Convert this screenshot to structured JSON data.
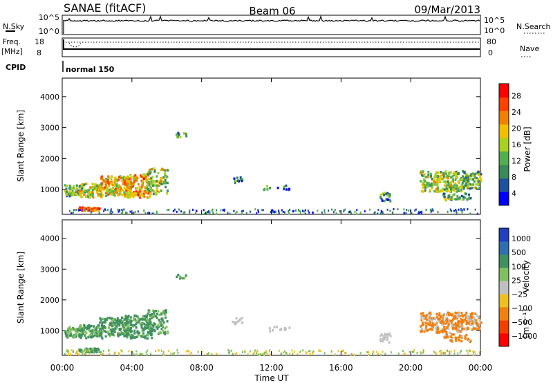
{
  "header": {
    "title_left": "SANAE (fitACF)",
    "title_center": "Beam 06",
    "title_right": "09/Mar/2013"
  },
  "colors": {
    "line": "#000000",
    "background": "#ffffff",
    "power_scale": [
      "#0000ff",
      "#2050a0",
      "#3a8a5a",
      "#50b050",
      "#a8d020",
      "#f0c000",
      "#f08000",
      "#ff4000",
      "#ff0000"
    ],
    "velocity_scale": [
      "#2040c0",
      "#3070b0",
      "#409060",
      "#80c060",
      "#c0c0c0",
      "#f0c020",
      "#f08010",
      "#f04000",
      "#ff0000"
    ]
  },
  "chart_data": [
    {
      "type": "line",
      "panel": "top-strip",
      "labels": {
        "left_top": "N.Sky",
        "left_axis_top": "10^5",
        "left_axis_bottom": "10^0",
        "right_axis_top": "10^5",
        "right_axis_bottom": "10^0",
        "right_legend": "N.Search"
      }
    },
    {
      "type": "line",
      "panel": "frequency-strip",
      "labels": {
        "left_top": "Freq.",
        "left_unit": "[MHz]",
        "left_axis_top": "18",
        "left_axis_bottom": "8",
        "right_axis_top": "80",
        "right_axis_bottom": "0",
        "right_legend": "Nave",
        "cpid_label": "CPID",
        "cpid_value": "normal 150"
      }
    },
    {
      "type": "heatmap",
      "panel": "power",
      "ylabel": "Slant Range [km]",
      "ylim": [
        200,
        4600
      ],
      "yticks": [
        "4000",
        "3000",
        "2000",
        "1000"
      ],
      "colorbar": {
        "label": "Power [dB]",
        "ticks": [
          "28",
          "24",
          "20",
          "16",
          "12",
          "8",
          "4"
        ],
        "range": [
          0,
          30
        ]
      }
    },
    {
      "type": "heatmap",
      "panel": "velocity",
      "ylabel": "Slant Range [km]",
      "ylim": [
        200,
        4600
      ],
      "yticks": [
        "4000",
        "3000",
        "2000",
        "1000"
      ],
      "colorbar": {
        "label": "Velocity",
        "unit": "[m s⁻¹]",
        "ticks": [
          "1000",
          "500",
          "100",
          "25",
          "−25",
          "−100",
          "−500",
          "−1000"
        ]
      },
      "xlabel": "Time UT",
      "xticks": [
        "00:00",
        "04:00",
        "08:00",
        "12:00",
        "16:00",
        "20:00",
        "00:00"
      ]
    }
  ]
}
